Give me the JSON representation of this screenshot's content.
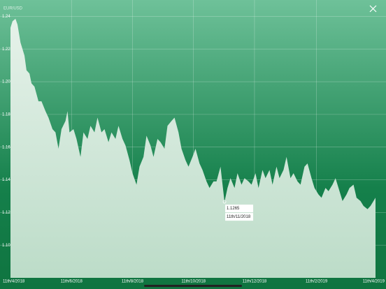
{
  "chart_data": {
    "type": "area",
    "title": "EUR/USD",
    "x": [
      0,
      2,
      5,
      7,
      10,
      14,
      16,
      19,
      21,
      24,
      28,
      31,
      35,
      38,
      42,
      45,
      48,
      51,
      55,
      57,
      59,
      63,
      66,
      70,
      73,
      77,
      80,
      84,
      87,
      91,
      94,
      98,
      101,
      105,
      108,
      112,
      115,
      119,
      122,
      126,
      129,
      133,
      136,
      140,
      143,
      147,
      150,
      154,
      157,
      161,
      164,
      168,
      171,
      175,
      178,
      182,
      185,
      189,
      192,
      196,
      199,
      203,
      206,
      210,
      214,
      217,
      220,
      224,
      227,
      231,
      234,
      238,
      241,
      245,
      248,
      252,
      255,
      259,
      262,
      266,
      269,
      273,
      276,
      280,
      283,
      287,
      290,
      294,
      297,
      301,
      304,
      308,
      311,
      315,
      318,
      322,
      325,
      329,
      332,
      336,
      339,
      343,
      346,
      350,
      353,
      357,
      360,
      365
    ],
    "values": [
      1.233,
      1.237,
      1.2385,
      1.235,
      1.224,
      1.216,
      1.207,
      1.205,
      1.199,
      1.197,
      1.188,
      1.188,
      1.182,
      1.178,
      1.171,
      1.169,
      1.159,
      1.171,
      1.176,
      1.182,
      1.169,
      1.171,
      1.165,
      1.154,
      1.169,
      1.165,
      1.173,
      1.169,
      1.178,
      1.169,
      1.171,
      1.163,
      1.169,
      1.165,
      1.173,
      1.165,
      1.161,
      1.152,
      1.144,
      1.137,
      1.148,
      1.154,
      1.167,
      1.161,
      1.154,
      1.165,
      1.163,
      1.159,
      1.173,
      1.176,
      1.178,
      1.169,
      1.159,
      1.152,
      1.148,
      1.154,
      1.159,
      1.15,
      1.146,
      1.139,
      1.135,
      1.139,
      1.139,
      1.148,
      1.1265,
      1.135,
      1.141,
      1.135,
      1.144,
      1.137,
      1.141,
      1.139,
      1.137,
      1.144,
      1.135,
      1.146,
      1.141,
      1.146,
      1.137,
      1.148,
      1.141,
      1.146,
      1.154,
      1.141,
      1.144,
      1.139,
      1.137,
      1.148,
      1.15,
      1.141,
      1.135,
      1.131,
      1.129,
      1.135,
      1.133,
      1.137,
      1.141,
      1.133,
      1.127,
      1.131,
      1.135,
      1.137,
      1.129,
      1.127,
      1.124,
      1.122,
      1.124,
      1.129
    ],
    "xlim": [
      0,
      365
    ],
    "xticks": [
      {
        "value": 0,
        "label": "11th/4/2018"
      },
      {
        "value": 61,
        "label": "11th/6/2018"
      },
      {
        "value": 122,
        "label": "11th/8/2018"
      },
      {
        "value": 183,
        "label": "11th/10/2018"
      },
      {
        "value": 244,
        "label": "11th/12/2018"
      },
      {
        "value": 306,
        "label": "11th/2/2019"
      },
      {
        "value": 365,
        "label": "11th/4/2019"
      }
    ],
    "ylim": [
      1.08,
      1.25
    ],
    "yticks": [
      {
        "value": 1.1,
        "label": "1.10"
      },
      1.12,
      1.14,
      1.16,
      1.18,
      {
        "value": 1.2,
        "label": "1.20"
      },
      1.22,
      1.24
    ],
    "grid": true,
    "annotations": [
      {
        "x": 214,
        "value": 1.1265,
        "label": "11th/11/2018"
      }
    ]
  }
}
